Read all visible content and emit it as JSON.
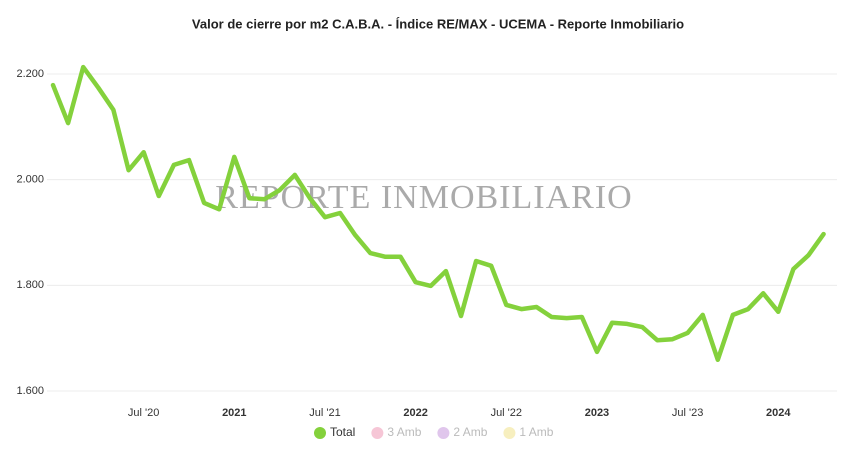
{
  "chart_data": {
    "type": "line",
    "title": "Valor de cierre por m2 C.A.B.A. - Índice RE/MAX - UCEMA - Reporte Inmobiliario",
    "watermark": "REPORTE INMOBILIARIO",
    "categories": [
      null,
      null,
      null,
      null,
      null,
      null,
      "Jul '20",
      null,
      null,
      null,
      null,
      null,
      "2021",
      null,
      null,
      null,
      null,
      null,
      "Jul '21",
      null,
      null,
      null,
      null,
      null,
      "2022",
      null,
      null,
      null,
      null,
      null,
      "Jul '22",
      null,
      null,
      null,
      null,
      null,
      "2023",
      null,
      null,
      null,
      null,
      null,
      "Jul '23",
      null,
      null,
      null,
      null,
      null,
      "2024",
      null,
      null,
      null
    ],
    "series": [
      {
        "name": "Total",
        "color": "#84d13c",
        "values": [
          2179,
          2107,
          2213,
          2174,
          2132,
          2018,
          2052,
          1969,
          2028,
          2037,
          1956,
          1944,
          2043,
          1965,
          1963,
          1980,
          2009,
          1965,
          1929,
          1937,
          1895,
          1861,
          1854,
          1854,
          1806,
          1799,
          1827,
          1742,
          1846,
          1837,
          1763,
          1755,
          1759,
          1740,
          1738,
          1740,
          1674,
          1729,
          1727,
          1721,
          1696,
          1698,
          1710,
          1744,
          1659,
          1744,
          1755,
          1785,
          1750,
          1831,
          1857,
          1897
        ]
      }
    ],
    "hidden_series": [
      {
        "name": "3 Amb",
        "color": "#f6c6d6"
      },
      {
        "name": "2 Amb",
        "color": "#e0c6ec"
      },
      {
        "name": "1 Amb",
        "color": "#f7efbf"
      }
    ],
    "ylim": [
      1600,
      2200
    ],
    "yticks": [
      {
        "value": 1600,
        "label": "1.600"
      },
      {
        "value": 1800,
        "label": "1.800"
      },
      {
        "value": 2000,
        "label": "2.000"
      },
      {
        "value": 2200,
        "label": "2.200"
      }
    ],
    "grid": true
  }
}
